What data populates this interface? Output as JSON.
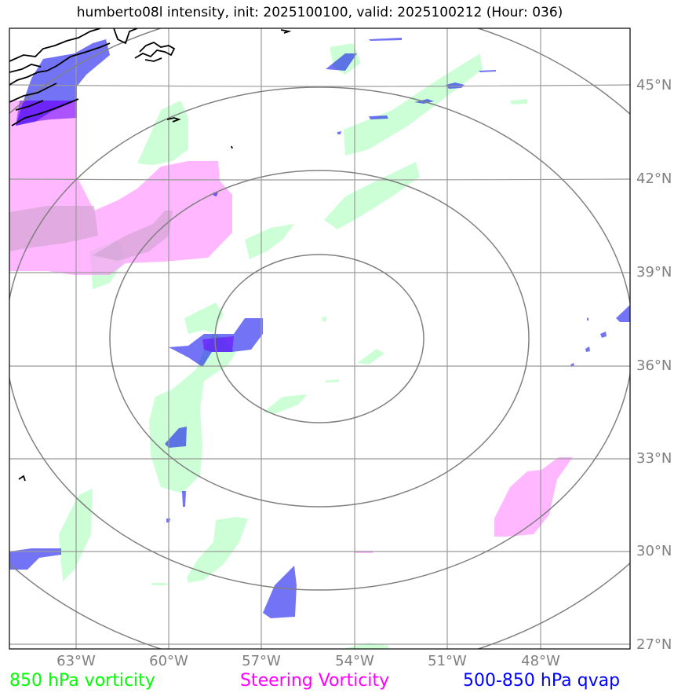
{
  "title": "humberto08l intensity, init: 2025100100, valid: 2025100212 (Hour: 036)",
  "map": {
    "projection_center": {
      "lon": "54.7°W",
      "lat": "37°N"
    },
    "latitude_labels": [
      "45°N",
      "42°N",
      "39°N",
      "36°N",
      "33°N",
      "30°N",
      "27°N"
    ],
    "longitude_labels": [
      "63°W",
      "60°W",
      "57°W",
      "54°W",
      "51°W",
      "48°W"
    ],
    "range_rings": 4,
    "layers": {
      "vort850": {
        "name": "850 hPa vorticity",
        "fill": "#ccffd6"
      },
      "steering": {
        "name": "Steering Vorticity",
        "fill": "#ff99ff"
      },
      "qvap": {
        "name": "500-850 hPa qvap",
        "fill": "#0000ee"
      }
    },
    "grid_color": "#808080",
    "coast_color": "#000000"
  },
  "legend": [
    {
      "label": "850 hPa vorticity",
      "color": "#00ff00"
    },
    {
      "label": "Steering Vorticity",
      "color": "#ff00ff"
    },
    {
      "label": "500-850 hPa qvap",
      "color": "#0000ff"
    }
  ]
}
